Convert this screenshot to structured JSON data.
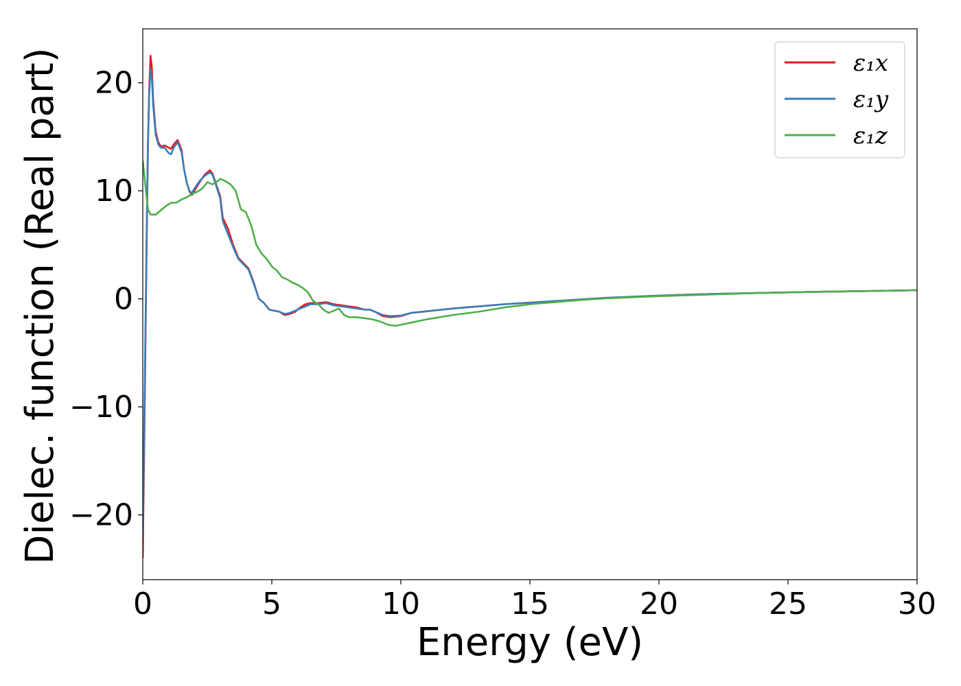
{
  "chart_data": {
    "type": "line",
    "title": "",
    "xlabel": "Energy (eV)",
    "ylabel": "Dielec. function (Real part)",
    "xlim": [
      0,
      30
    ],
    "ylim": [
      -26,
      25
    ],
    "xticks": [
      0,
      5,
      10,
      15,
      20,
      25,
      30
    ],
    "xtick_labels": [
      "0",
      "5",
      "10",
      "15",
      "20",
      "25",
      "30"
    ],
    "yticks": [
      -20,
      -10,
      0,
      10,
      20
    ],
    "ytick_labels": [
      "−20",
      "−10",
      "0",
      "10",
      "20"
    ],
    "grid": false,
    "legend_position": "top-right",
    "series": [
      {
        "name": "ε₁x",
        "color": "#e41a1c",
        "points": [
          [
            0.0,
            -24.0
          ],
          [
            0.05,
            -15.0
          ],
          [
            0.1,
            -5.0
          ],
          [
            0.15,
            5.0
          ],
          [
            0.2,
            14.0
          ],
          [
            0.25,
            19.5
          ],
          [
            0.3,
            22.5
          ],
          [
            0.35,
            21.5
          ],
          [
            0.4,
            18.5
          ],
          [
            0.5,
            15.5
          ],
          [
            0.6,
            14.5
          ],
          [
            0.7,
            14.1
          ],
          [
            0.85,
            14.2
          ],
          [
            1.0,
            14.0
          ],
          [
            1.1,
            13.9
          ],
          [
            1.2,
            14.3
          ],
          [
            1.35,
            14.7
          ],
          [
            1.5,
            13.8
          ],
          [
            1.6,
            12.0
          ],
          [
            1.7,
            10.8
          ],
          [
            1.8,
            10.0
          ],
          [
            1.9,
            9.6
          ],
          [
            2.0,
            10.0
          ],
          [
            2.2,
            10.8
          ],
          [
            2.4,
            11.5
          ],
          [
            2.6,
            11.9
          ],
          [
            2.7,
            11.6
          ],
          [
            2.8,
            10.9
          ],
          [
            3.0,
            9.5
          ],
          [
            3.1,
            7.5
          ],
          [
            3.3,
            6.5
          ],
          [
            3.5,
            5.0
          ],
          [
            3.7,
            3.8
          ],
          [
            3.9,
            3.3
          ],
          [
            4.1,
            2.8
          ],
          [
            4.3,
            1.5
          ],
          [
            4.5,
            0.0
          ],
          [
            4.7,
            -0.4
          ],
          [
            4.9,
            -1.0
          ],
          [
            5.1,
            -1.1
          ],
          [
            5.3,
            -1.2
          ],
          [
            5.5,
            -1.5
          ],
          [
            5.7,
            -1.4
          ],
          [
            5.9,
            -1.2
          ],
          [
            6.1,
            -0.8
          ],
          [
            6.3,
            -0.5
          ],
          [
            6.5,
            -0.4
          ],
          [
            6.8,
            -0.4
          ],
          [
            7.1,
            -0.3
          ],
          [
            7.4,
            -0.5
          ],
          [
            7.7,
            -0.6
          ],
          [
            8.0,
            -0.7
          ],
          [
            8.3,
            -0.8
          ],
          [
            8.6,
            -1.0
          ],
          [
            8.8,
            -1.0
          ],
          [
            9.0,
            -1.2
          ],
          [
            9.3,
            -1.6
          ],
          [
            9.6,
            -1.7
          ],
          [
            10.0,
            -1.6
          ],
          [
            10.4,
            -1.3
          ],
          [
            10.8,
            -1.2
          ],
          [
            11.2,
            -1.1
          ],
          [
            11.6,
            -1.0
          ],
          [
            12.0,
            -0.9
          ],
          [
            12.5,
            -0.8
          ],
          [
            13.0,
            -0.7
          ],
          [
            14.0,
            -0.5
          ],
          [
            15.0,
            -0.35
          ],
          [
            16.0,
            -0.2
          ],
          [
            17.0,
            -0.05
          ],
          [
            18.0,
            0.1
          ],
          [
            20.0,
            0.3
          ],
          [
            22.0,
            0.45
          ],
          [
            24.0,
            0.55
          ],
          [
            26.0,
            0.65
          ],
          [
            28.0,
            0.72
          ],
          [
            30.0,
            0.8
          ]
        ]
      },
      {
        "name": "ε₁y",
        "color": "#377eb8",
        "points": [
          [
            0.0,
            -22.0
          ],
          [
            0.05,
            -13.0
          ],
          [
            0.1,
            -3.5
          ],
          [
            0.15,
            6.0
          ],
          [
            0.2,
            14.5
          ],
          [
            0.25,
            19.0
          ],
          [
            0.3,
            21.3
          ],
          [
            0.35,
            20.5
          ],
          [
            0.4,
            18.0
          ],
          [
            0.5,
            15.2
          ],
          [
            0.6,
            14.3
          ],
          [
            0.7,
            14.0
          ],
          [
            0.85,
            14.0
          ],
          [
            1.0,
            13.5
          ],
          [
            1.1,
            13.4
          ],
          [
            1.2,
            14.0
          ],
          [
            1.35,
            14.5
          ],
          [
            1.5,
            13.6
          ],
          [
            1.6,
            12.0
          ],
          [
            1.7,
            10.8
          ],
          [
            1.8,
            10.0
          ],
          [
            1.9,
            9.8
          ],
          [
            2.0,
            10.2
          ],
          [
            2.2,
            10.9
          ],
          [
            2.4,
            11.4
          ],
          [
            2.6,
            11.7
          ],
          [
            2.7,
            11.5
          ],
          [
            2.8,
            10.8
          ],
          [
            3.0,
            9.3
          ],
          [
            3.1,
            7.2
          ],
          [
            3.3,
            6.0
          ],
          [
            3.5,
            4.8
          ],
          [
            3.7,
            3.7
          ],
          [
            3.9,
            3.2
          ],
          [
            4.1,
            2.7
          ],
          [
            4.3,
            1.4
          ],
          [
            4.5,
            0.0
          ],
          [
            4.7,
            -0.4
          ],
          [
            4.9,
            -1.0
          ],
          [
            5.1,
            -1.1
          ],
          [
            5.3,
            -1.2
          ],
          [
            5.5,
            -1.4
          ],
          [
            5.7,
            -1.3
          ],
          [
            5.9,
            -1.1
          ],
          [
            6.1,
            -0.9
          ],
          [
            6.3,
            -0.7
          ],
          [
            6.5,
            -0.5
          ],
          [
            6.8,
            -0.5
          ],
          [
            7.1,
            -0.4
          ],
          [
            7.4,
            -0.6
          ],
          [
            7.7,
            -0.7
          ],
          [
            8.0,
            -0.8
          ],
          [
            8.3,
            -0.9
          ],
          [
            8.6,
            -1.0
          ],
          [
            8.8,
            -1.0
          ],
          [
            9.0,
            -1.2
          ],
          [
            9.3,
            -1.5
          ],
          [
            9.6,
            -1.6
          ],
          [
            10.0,
            -1.55
          ],
          [
            10.4,
            -1.3
          ],
          [
            10.8,
            -1.2
          ],
          [
            11.2,
            -1.1
          ],
          [
            11.6,
            -1.0
          ],
          [
            12.0,
            -0.9
          ],
          [
            12.5,
            -0.8
          ],
          [
            13.0,
            -0.7
          ],
          [
            14.0,
            -0.5
          ],
          [
            15.0,
            -0.35
          ],
          [
            16.0,
            -0.2
          ],
          [
            17.0,
            -0.05
          ],
          [
            18.0,
            0.1
          ],
          [
            20.0,
            0.3
          ],
          [
            22.0,
            0.45
          ],
          [
            24.0,
            0.55
          ],
          [
            26.0,
            0.65
          ],
          [
            28.0,
            0.72
          ],
          [
            30.0,
            0.8
          ]
        ]
      },
      {
        "name": "ε₁z",
        "color": "#4daf4a",
        "points": [
          [
            0.0,
            12.8
          ],
          [
            0.1,
            10.5
          ],
          [
            0.2,
            8.3
          ],
          [
            0.3,
            7.8
          ],
          [
            0.5,
            7.8
          ],
          [
            0.7,
            8.2
          ],
          [
            0.9,
            8.6
          ],
          [
            1.1,
            8.9
          ],
          [
            1.3,
            8.9
          ],
          [
            1.5,
            9.2
          ],
          [
            1.7,
            9.4
          ],
          [
            1.9,
            9.7
          ],
          [
            2.1,
            9.9
          ],
          [
            2.3,
            10.2
          ],
          [
            2.5,
            10.8
          ],
          [
            2.7,
            10.6
          ],
          [
            2.9,
            10.9
          ],
          [
            3.0,
            11.1
          ],
          [
            3.2,
            10.9
          ],
          [
            3.4,
            10.6
          ],
          [
            3.6,
            10.0
          ],
          [
            3.8,
            8.3
          ],
          [
            4.0,
            8.0
          ],
          [
            4.2,
            6.8
          ],
          [
            4.4,
            5.0
          ],
          [
            4.6,
            4.2
          ],
          [
            4.8,
            3.7
          ],
          [
            5.0,
            3.0
          ],
          [
            5.2,
            2.6
          ],
          [
            5.4,
            2.0
          ],
          [
            5.6,
            1.8
          ],
          [
            5.8,
            1.5
          ],
          [
            6.0,
            1.3
          ],
          [
            6.2,
            1.0
          ],
          [
            6.4,
            0.6
          ],
          [
            6.6,
            -0.2
          ],
          [
            6.8,
            -0.5
          ],
          [
            7.0,
            -1.0
          ],
          [
            7.2,
            -1.3
          ],
          [
            7.4,
            -1.1
          ],
          [
            7.6,
            -0.9
          ],
          [
            7.8,
            -1.5
          ],
          [
            8.0,
            -1.7
          ],
          [
            8.3,
            -1.7
          ],
          [
            8.6,
            -1.8
          ],
          [
            8.9,
            -1.9
          ],
          [
            9.2,
            -2.1
          ],
          [
            9.5,
            -2.4
          ],
          [
            9.8,
            -2.5
          ],
          [
            10.2,
            -2.3
          ],
          [
            10.6,
            -2.1
          ],
          [
            11.0,
            -1.9
          ],
          [
            11.5,
            -1.7
          ],
          [
            12.0,
            -1.5
          ],
          [
            13.0,
            -1.2
          ],
          [
            14.0,
            -0.8
          ],
          [
            15.0,
            -0.5
          ],
          [
            16.0,
            -0.3
          ],
          [
            17.0,
            -0.1
          ],
          [
            18.0,
            0.05
          ],
          [
            20.0,
            0.25
          ],
          [
            22.0,
            0.4
          ],
          [
            24.0,
            0.55
          ],
          [
            26.0,
            0.65
          ],
          [
            28.0,
            0.72
          ],
          [
            30.0,
            0.8
          ]
        ]
      }
    ]
  }
}
